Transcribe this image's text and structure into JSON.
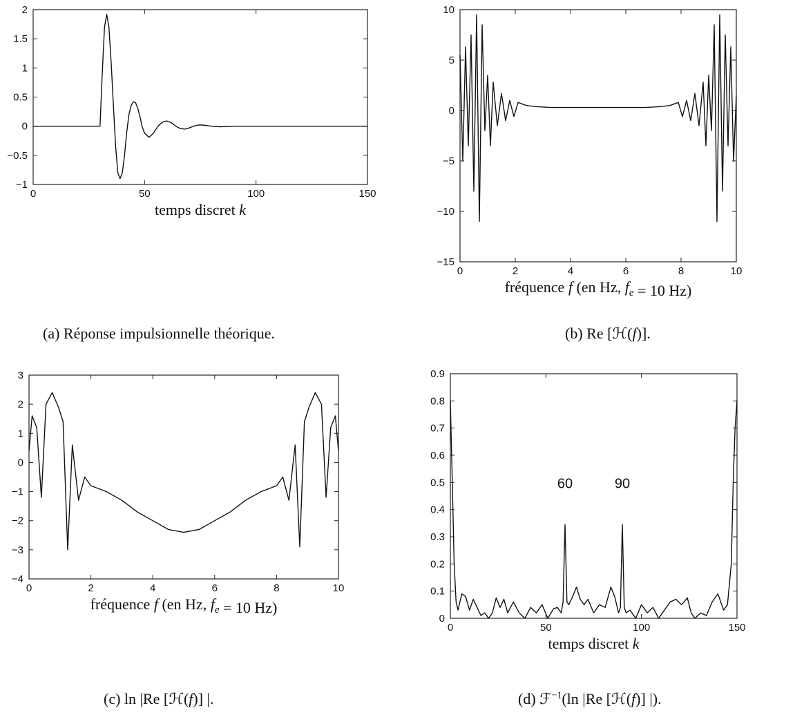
{
  "chart_data": [
    {
      "id": "a",
      "type": "line",
      "caption": "(a) Réponse impulsionnelle théorique.",
      "xlabel": "temps discret k",
      "ylabel": "",
      "xlim": [
        0,
        150
      ],
      "ylim": [
        -1,
        2
      ],
      "xticks": [
        0,
        50,
        100,
        150
      ],
      "yticks": [
        -1,
        -0.5,
        0,
        0.5,
        1,
        1.5,
        2
      ],
      "ytick_labels": [
        "−1",
        "−0.5",
        "0",
        "0.5",
        "1",
        "1.5",
        "2"
      ],
      "grid": false,
      "series": [
        {
          "x": [
            0,
            30,
            31,
            32,
            33,
            34,
            35,
            36,
            37,
            38,
            39,
            40,
            41,
            42,
            43,
            44,
            45,
            46,
            47,
            48,
            49,
            50,
            52,
            54,
            56,
            58,
            60,
            62,
            64,
            66,
            68,
            70,
            72,
            74,
            76,
            78,
            80,
            84,
            90,
            150
          ],
          "y": [
            0,
            0,
            0.9,
            1.7,
            1.92,
            1.7,
            1.1,
            0.35,
            -0.35,
            -0.8,
            -0.9,
            -0.8,
            -0.5,
            -0.1,
            0.2,
            0.36,
            0.42,
            0.4,
            0.3,
            0.15,
            -0.02,
            -0.12,
            -0.19,
            -0.12,
            0.0,
            0.07,
            0.09,
            0.06,
            0.0,
            -0.04,
            -0.05,
            -0.03,
            0.0,
            0.02,
            0.02,
            0.01,
            0.0,
            -0.01,
            0.0,
            0.0
          ]
        }
      ]
    },
    {
      "id": "b",
      "type": "line",
      "caption": "(b) Re [H(f)].",
      "xlabel": "fréquence f (en Hz, fe = 10 Hz)",
      "ylabel": "",
      "xlim": [
        0,
        10
      ],
      "ylim": [
        -15,
        10
      ],
      "xticks": [
        0,
        2,
        4,
        6,
        8,
        10
      ],
      "yticks": [
        -15,
        -10,
        -5,
        0,
        5,
        10
      ],
      "ytick_labels": [
        "−15",
        "−10",
        "−5",
        "0",
        "5",
        "10"
      ],
      "grid": false,
      "series": [
        {
          "x": [
            0,
            0.1,
            0.2,
            0.3,
            0.4,
            0.5,
            0.6,
            0.7,
            0.8,
            0.9,
            1.0,
            1.1,
            1.2,
            1.35,
            1.5,
            1.65,
            1.8,
            1.95,
            2.1,
            2.4,
            2.7,
            3.0,
            3.3,
            3.6,
            3.9,
            4.2,
            4.5,
            4.8,
            5.0,
            5.2,
            5.5,
            5.8,
            6.1,
            6.4,
            6.7,
            7.0,
            7.3,
            7.6,
            7.9,
            8.05,
            8.2,
            8.35,
            8.5,
            8.65,
            8.8,
            8.9,
            9.0,
            9.1,
            9.2,
            9.3,
            9.4,
            9.5,
            9.6,
            9.7,
            9.8,
            9.9,
            10.0
          ],
          "y": [
            5.5,
            -5,
            6.3,
            -3.5,
            7.5,
            -8,
            9.5,
            -11,
            8.5,
            -2,
            3.5,
            -3.5,
            2.8,
            -1.5,
            1.7,
            -1.0,
            1.0,
            -0.6,
            0.8,
            0.5,
            0.4,
            0.35,
            0.3,
            0.3,
            0.3,
            0.3,
            0.3,
            0.3,
            0.3,
            0.3,
            0.3,
            0.3,
            0.3,
            0.3,
            0.3,
            0.35,
            0.4,
            0.5,
            0.8,
            -0.6,
            1.0,
            -1.0,
            1.7,
            -1.5,
            2.8,
            -3.5,
            3.5,
            -2,
            8.5,
            -11,
            9.5,
            -8,
            7.5,
            -3.5,
            6.3,
            -5,
            1.5
          ]
        }
      ]
    },
    {
      "id": "c",
      "type": "line",
      "caption": "(c) ln |Re [H(f)] |.",
      "xlabel": "fréquence f (en Hz, fe = 10 Hz)",
      "ylabel": "",
      "xlim": [
        0,
        10
      ],
      "ylim": [
        -4,
        3
      ],
      "xticks": [
        0,
        2,
        4,
        6,
        8,
        10
      ],
      "yticks": [
        -4,
        -3,
        -2,
        -1,
        0,
        1,
        2,
        3
      ],
      "ytick_labels": [
        "−4",
        "−3",
        "−2",
        "−1",
        "0",
        "1",
        "2",
        "3"
      ],
      "grid": false,
      "series": [
        {
          "x": [
            0,
            0.1,
            0.25,
            0.4,
            0.55,
            0.75,
            0.95,
            1.1,
            1.25,
            1.4,
            1.6,
            1.8,
            2.0,
            2.5,
            3.0,
            3.5,
            4.0,
            4.5,
            5.0,
            5.5,
            6.0,
            6.5,
            7.0,
            7.5,
            8.0,
            8.2,
            8.4,
            8.6,
            8.75,
            8.9,
            9.05,
            9.25,
            9.45,
            9.6,
            9.75,
            9.9,
            10.0
          ],
          "y": [
            0.4,
            1.6,
            1.2,
            -1.2,
            2.0,
            2.4,
            1.9,
            1.4,
            -3.0,
            0.6,
            -1.3,
            -0.5,
            -0.8,
            -1.0,
            -1.3,
            -1.7,
            -2.0,
            -2.3,
            -2.4,
            -2.3,
            -2.0,
            -1.7,
            -1.3,
            -1.0,
            -0.8,
            -0.5,
            -1.3,
            0.6,
            -2.9,
            1.4,
            1.9,
            2.4,
            2.0,
            -1.2,
            1.2,
            1.6,
            0.4
          ]
        }
      ]
    },
    {
      "id": "d",
      "type": "line",
      "caption": "(d) F⁻¹(ln |Re [H(f)] |).",
      "xlabel": "temps discret k",
      "ylabel": "",
      "xlim": [
        0,
        150
      ],
      "ylim": [
        0,
        0.9
      ],
      "xticks": [
        0,
        50,
        100,
        150
      ],
      "yticks": [
        0,
        0.1,
        0.2,
        0.3,
        0.4,
        0.5,
        0.6,
        0.7,
        0.8,
        0.9
      ],
      "ytick_labels": [
        "0",
        "0.1",
        "0.2",
        "0.3",
        "0.4",
        "0.5",
        "0.6",
        "0.7",
        "0.8",
        "0.9"
      ],
      "grid": false,
      "annotations": [
        {
          "text": "60",
          "x": 60,
          "y": 0.5
        },
        {
          "text": "90",
          "x": 90,
          "y": 0.5
        }
      ],
      "series": [
        {
          "x": [
            0,
            1,
            2,
            3,
            4,
            5,
            6,
            8,
            10,
            12,
            14,
            16,
            18,
            20,
            22,
            24,
            26,
            28,
            30,
            33,
            36,
            39,
            42,
            45,
            48,
            51,
            54,
            56,
            58,
            59,
            60,
            61,
            62,
            64,
            66,
            68,
            70,
            72,
            75,
            78,
            81,
            84,
            86,
            88,
            89,
            90,
            91,
            92,
            94,
            97,
            100,
            103,
            106,
            109,
            112,
            115,
            118,
            121,
            124,
            126,
            128,
            131,
            134,
            137,
            140,
            143,
            145,
            147,
            148,
            149,
            150
          ],
          "y": [
            0.8,
            0.5,
            0.2,
            0.06,
            0.03,
            0.06,
            0.09,
            0.08,
            0.03,
            0.07,
            0.04,
            0.01,
            0.02,
            0.0,
            0.02,
            0.075,
            0.04,
            0.07,
            0.02,
            0.06,
            0.02,
            0.0,
            0.04,
            0.02,
            0.05,
            0.0,
            0.035,
            0.04,
            0.02,
            0.06,
            0.345,
            0.06,
            0.05,
            0.08,
            0.115,
            0.07,
            0.05,
            0.07,
            0.02,
            0.05,
            0.04,
            0.115,
            0.08,
            0.02,
            0.04,
            0.345,
            0.04,
            0.02,
            0.03,
            0.0,
            0.05,
            0.02,
            0.04,
            0.0,
            0.03,
            0.06,
            0.07,
            0.05,
            0.075,
            0.02,
            0.0,
            0.02,
            0.01,
            0.06,
            0.09,
            0.03,
            0.05,
            0.2,
            0.5,
            0.7,
            0.8
          ]
        }
      ]
    }
  ]
}
